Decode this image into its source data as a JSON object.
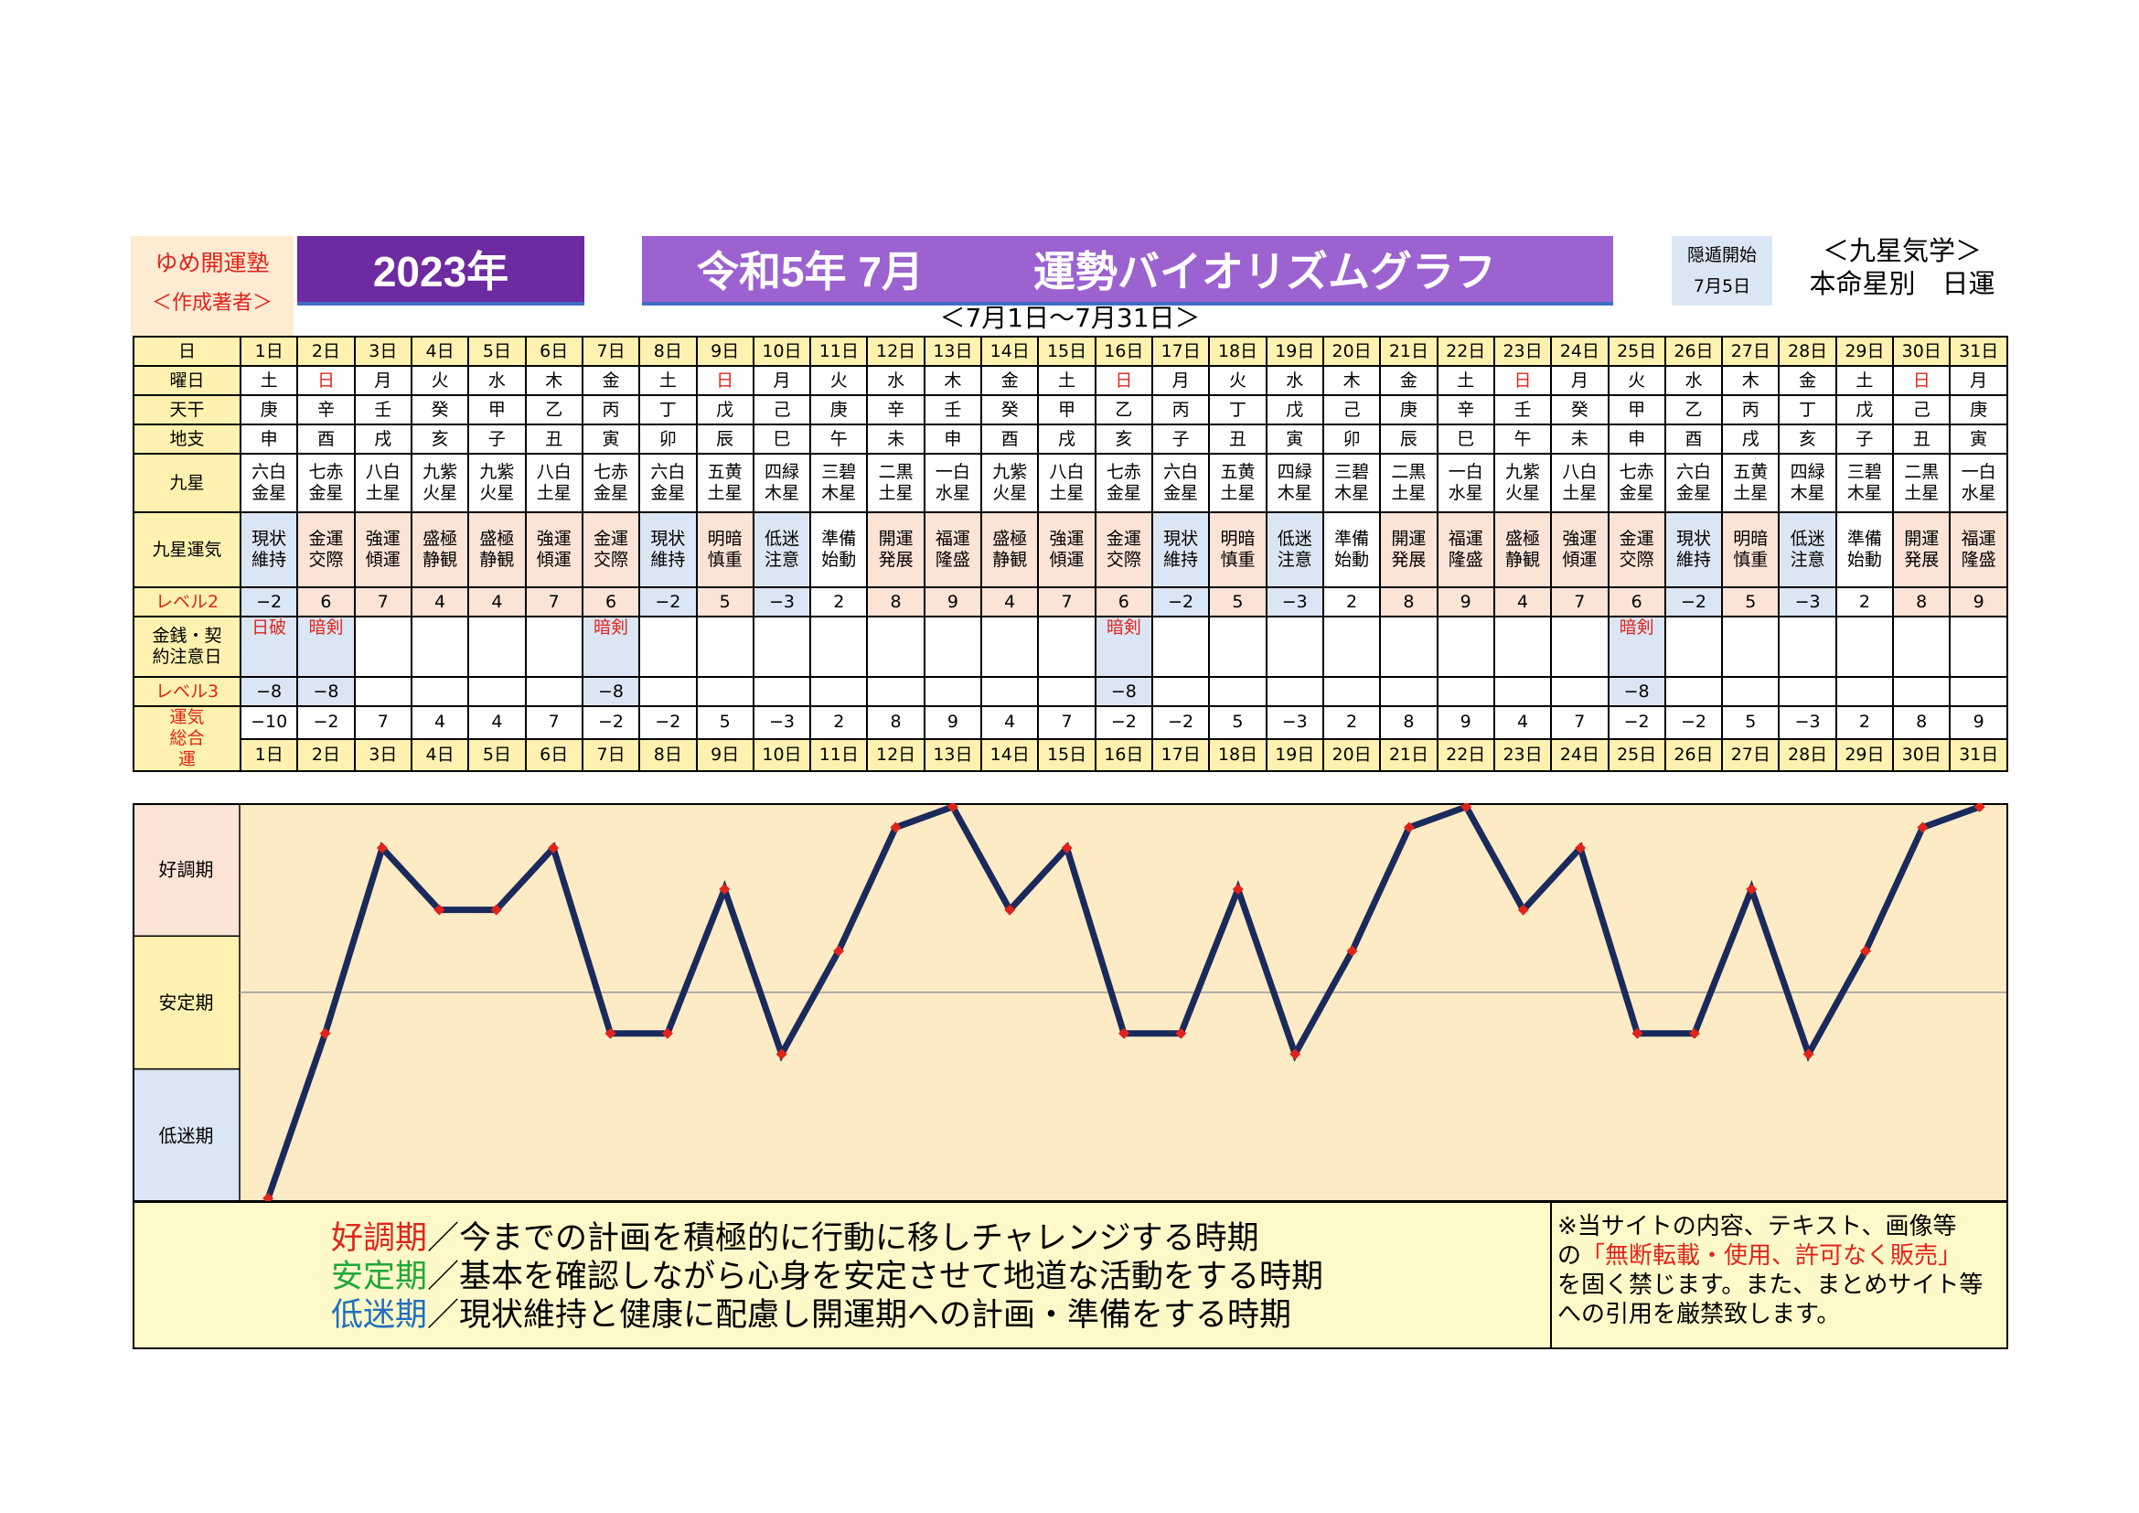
{
  "header": {
    "brand": "ゆめ開運塾",
    "brand_sub": "＜作成著者＞",
    "year": "2023年",
    "title_era": "令和5年 7月",
    "title_main": "運勢バイオリズムグラフ",
    "hidden_label": "隠遁開始",
    "hidden_date": "7月5日",
    "kyusei_1": "＜九星気学＞",
    "kyusei_2": "本命星別　日運",
    "range": "＜7月1日～7月31日＞"
  },
  "row_labels": {
    "day": "日",
    "weekday": "曜日",
    "stem": "天干",
    "branch": "地支",
    "star": "九星",
    "star_luck": "九星運気",
    "level2": "レベル2",
    "money": "金銭・契約注意日",
    "level3": "レベル3",
    "total": "運気総合運"
  },
  "days": [
    "1日",
    "2日",
    "3日",
    "4日",
    "5日",
    "6日",
    "7日",
    "8日",
    "9日",
    "10日",
    "11日",
    "12日",
    "13日",
    "14日",
    "15日",
    "16日",
    "17日",
    "18日",
    "19日",
    "20日",
    "21日",
    "22日",
    "23日",
    "24日",
    "25日",
    "26日",
    "27日",
    "28日",
    "29日",
    "30日",
    "31日"
  ],
  "weekdays": [
    "土",
    "日",
    "月",
    "火",
    "水",
    "木",
    "金",
    "土",
    "日",
    "月",
    "火",
    "水",
    "木",
    "金",
    "土",
    "日",
    "月",
    "火",
    "水",
    "木",
    "金",
    "土",
    "日",
    "月",
    "火",
    "水",
    "木",
    "金",
    "土",
    "日",
    "月"
  ],
  "stems": [
    "庚",
    "辛",
    "壬",
    "癸",
    "甲",
    "乙",
    "丙",
    "丁",
    "戊",
    "己",
    "庚",
    "辛",
    "壬",
    "癸",
    "甲",
    "乙",
    "丙",
    "丁",
    "戊",
    "己",
    "庚",
    "辛",
    "壬",
    "癸",
    "甲",
    "乙",
    "丙",
    "丁",
    "戊",
    "己",
    "庚"
  ],
  "branches": [
    "申",
    "酉",
    "戌",
    "亥",
    "子",
    "丑",
    "寅",
    "卯",
    "辰",
    "巳",
    "午",
    "未",
    "申",
    "酉",
    "戌",
    "亥",
    "子",
    "丑",
    "寅",
    "卯",
    "辰",
    "巳",
    "午",
    "未",
    "申",
    "酉",
    "戌",
    "亥",
    "子",
    "丑",
    "寅"
  ],
  "stars": [
    "六白金星",
    "七赤金星",
    "八白土星",
    "九紫火星",
    "九紫火星",
    "八白土星",
    "七赤金星",
    "六白金星",
    "五黄土星",
    "四緑木星",
    "三碧木星",
    "二黒土星",
    "一白水星",
    "九紫火星",
    "八白土星",
    "七赤金星",
    "六白金星",
    "五黄土星",
    "四緑木星",
    "三碧木星",
    "二黒土星",
    "一白水星",
    "九紫火星",
    "八白土星",
    "七赤金星",
    "六白金星",
    "五黄土星",
    "四緑木星",
    "三碧木星",
    "二黒土星",
    "一白水星"
  ],
  "star_luck": [
    "現状維持",
    "金運交際",
    "強運傾運",
    "盛極静観",
    "盛極静観",
    "強運傾運",
    "金運交際",
    "現状維持",
    "明暗慎重",
    "低迷注意",
    "準備始動",
    "開運発展",
    "福運隆盛",
    "盛極静観",
    "強運傾運",
    "金運交際",
    "現状維持",
    "明暗慎重",
    "低迷注意",
    "準備始動",
    "開運発展",
    "福運隆盛",
    "盛極静観",
    "強運傾運",
    "金運交際",
    "現状維持",
    "明暗慎重",
    "低迷注意",
    "準備始動",
    "開運発展",
    "福運隆盛"
  ],
  "level2": [
    "−2",
    "6",
    "7",
    "4",
    "4",
    "7",
    "6",
    "−2",
    "5",
    "−3",
    "2",
    "8",
    "9",
    "4",
    "7",
    "6",
    "−2",
    "5",
    "−3",
    "2",
    "8",
    "9",
    "4",
    "7",
    "6",
    "−2",
    "5",
    "−3",
    "2",
    "8",
    "9"
  ],
  "money": [
    "日破",
    "暗剣",
    "",
    "",
    "",
    "",
    "暗剣",
    "",
    "",
    "",
    "",
    "",
    "",
    "",
    "",
    "暗剣",
    "",
    "",
    "",
    "",
    "",
    "",
    "",
    "",
    "暗剣",
    "",
    "",
    "",
    "",
    "",
    ""
  ],
  "level3": [
    "−8",
    "−8",
    "",
    "",
    "",
    "",
    "−8",
    "",
    "",
    "",
    "",
    "",
    "",
    "",
    "",
    "−8",
    "",
    "",
    "",
    "",
    "",
    "",
    "",
    "",
    "−8",
    "",
    "",
    "",
    "",
    "",
    ""
  ],
  "total": [
    "−10",
    "−2",
    "7",
    "4",
    "4",
    "7",
    "−2",
    "−2",
    "5",
    "−3",
    "2",
    "8",
    "9",
    "4",
    "7",
    "−2",
    "−2",
    "5",
    "−3",
    "2",
    "8",
    "9",
    "4",
    "7",
    "−2",
    "−2",
    "5",
    "−3",
    "2",
    "8",
    "9"
  ],
  "colors": {
    "label_bg": "#fff2b0",
    "good_bg": "#fbe3d6",
    "bad_bg": "#dbe6f4",
    "line": "#1b2a5c",
    "marker": "#e0241b",
    "plot_bg": "#fdebc6"
  },
  "chart_data": {
    "type": "line",
    "categories": [
      "1日",
      "2日",
      "3日",
      "4日",
      "5日",
      "6日",
      "7日",
      "8日",
      "9日",
      "10日",
      "11日",
      "12日",
      "13日",
      "14日",
      "15日",
      "16日",
      "17日",
      "18日",
      "19日",
      "20日",
      "21日",
      "22日",
      "23日",
      "24日",
      "25日",
      "26日",
      "27日",
      "28日",
      "29日",
      "30日",
      "31日"
    ],
    "values": [
      -10,
      -2,
      7,
      4,
      4,
      7,
      -2,
      -2,
      5,
      -3,
      2,
      8,
      9,
      4,
      7,
      -2,
      -2,
      5,
      -3,
      2,
      8,
      9,
      4,
      7,
      -2,
      -2,
      5,
      -3,
      2,
      8,
      9
    ],
    "ylim": [
      -10,
      9
    ],
    "zones": [
      "好調期",
      "安定期",
      "低迷期"
    ],
    "baseline": 0
  },
  "footer": {
    "good_term": "好調期",
    "good_text": "／今までの計画を積極的に行動に移しチャレンジする時期",
    "stable_term": "安定期",
    "stable_text": "／基本を確認しながら心身を安定させて地道な活動をする時期",
    "low_term": "低迷期",
    "low_text": "／現状維持と健康に配慮し開運期への計画・準備をする時期",
    "notice_1": "※当サイトの内容、テキスト、画像等",
    "notice_2a": "の",
    "notice_2b": "「無断転載・使用、許可なく販売」",
    "notice_3": "を固く禁じます。また、まとめサイト等",
    "notice_4": "への引用を厳禁致します。"
  }
}
